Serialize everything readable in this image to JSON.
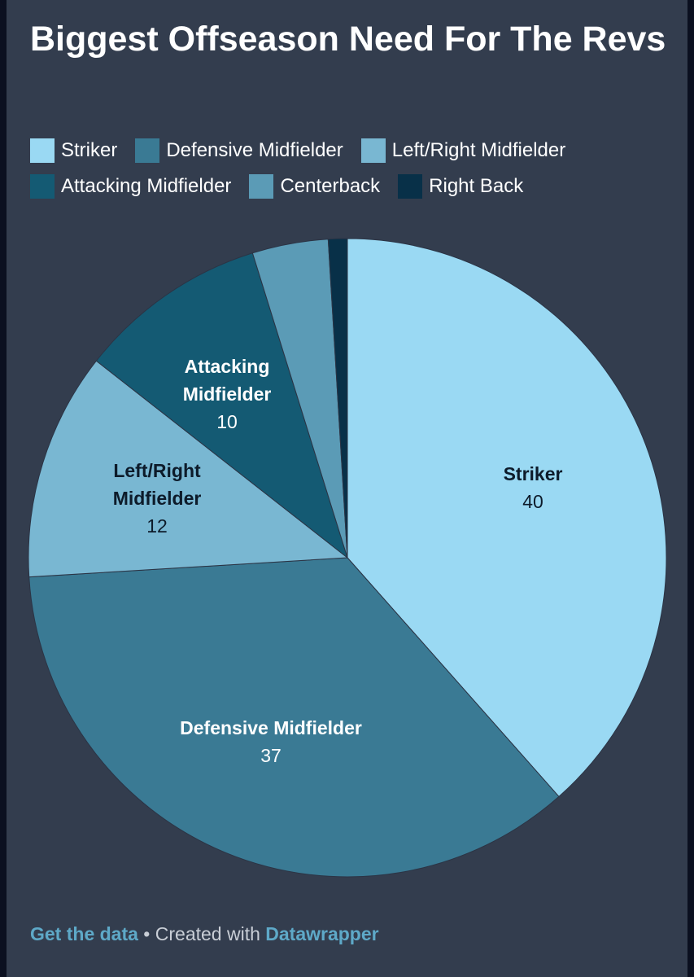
{
  "title": "Biggest Offseason Need For The Revs",
  "chart_data": {
    "type": "pie",
    "title": "Biggest Offseason Need For The Revs",
    "slices": [
      {
        "label": "Striker",
        "value": 40,
        "color": "#9ad9f3",
        "text_color": "#0d1b2a",
        "show_label": true
      },
      {
        "label": "Defensive Midfielder",
        "value": 37,
        "color": "#3a7a94",
        "text_color": "#ffffff",
        "show_label": true
      },
      {
        "label": "Left/Right Midfielder",
        "value": 12,
        "color": "#79b7d2",
        "text_color": "#0d1b2a",
        "show_label": true
      },
      {
        "label": "Attacking Midfielder",
        "value": 10,
        "color": "#145a73",
        "text_color": "#ffffff",
        "show_label": true
      },
      {
        "label": "Centerback",
        "value": 4,
        "color": "#5b9bb6",
        "text_color": "#ffffff",
        "show_label": false
      },
      {
        "label": "Right Back",
        "value": 1,
        "color": "#083048",
        "text_color": "#ffffff",
        "show_label": false
      }
    ],
    "legend_placement": "top"
  },
  "footer": {
    "get_data": "Get the data",
    "separator": " • Created with ",
    "datawrapper": "Datawrapper"
  }
}
